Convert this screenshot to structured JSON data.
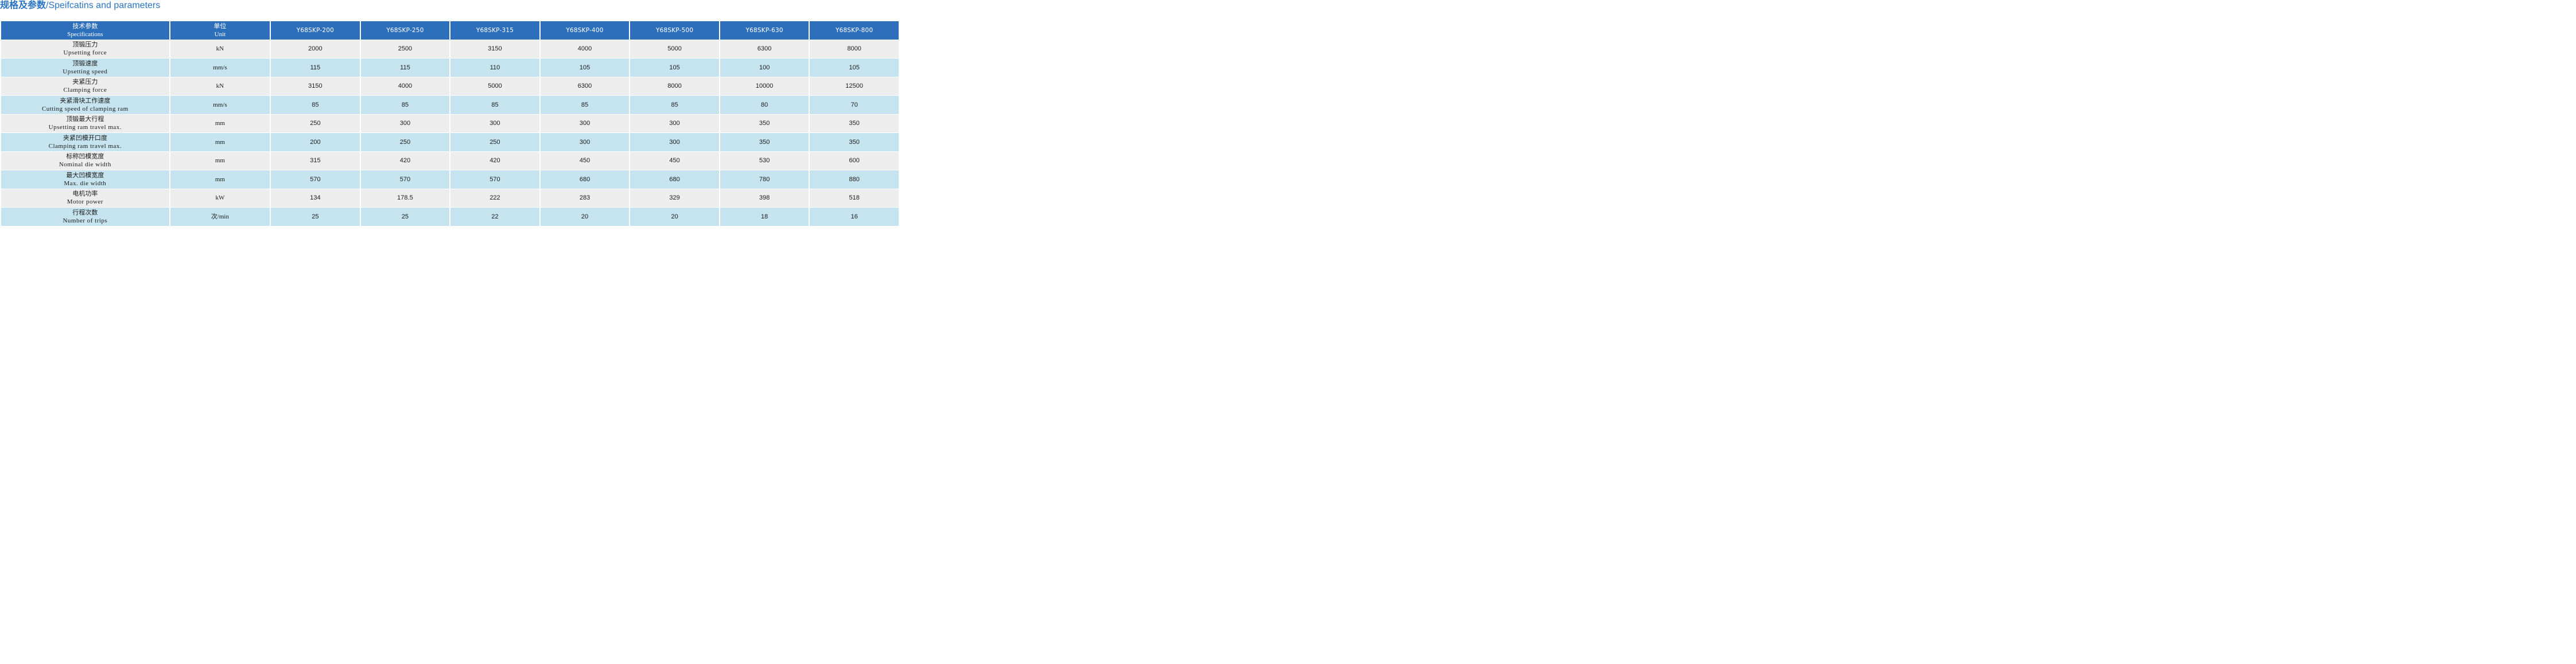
{
  "title": {
    "zh": "规格及参数",
    "en": "/Speifcatins and parameters"
  },
  "header": {
    "spec_zh": "技术参数",
    "spec_en": "Specifications",
    "unit_zh": "单位",
    "unit_en": "Unit",
    "models": [
      "Y68SKP-200",
      "Y68SKP-250",
      "Y68SKP-315",
      "Y68SKP-400",
      "Y68SKP-500",
      "Y68SKP-630",
      "Y68SKP-800"
    ]
  },
  "rows": [
    {
      "zh": "顶锻压力",
      "en": "Upsetting force",
      "unit": "kN",
      "values": [
        "2000",
        "2500",
        "3150",
        "4000",
        "5000",
        "6300",
        "8000"
      ]
    },
    {
      "zh": "顶锻速度",
      "en": "Upsetting speed",
      "unit": "mm/s",
      "values": [
        "115",
        "115",
        "110",
        "105",
        "105",
        "100",
        "105"
      ]
    },
    {
      "zh": "夹紧压力",
      "en": "Clamping force",
      "unit": "kN",
      "values": [
        "3150",
        "4000",
        "5000",
        "6300",
        "8000",
        "10000",
        "12500"
      ]
    },
    {
      "zh": "夹紧滑块工作速度",
      "en": "Cutting speed of clamping ram",
      "unit": "mm/s",
      "values": [
        "85",
        "85",
        "85",
        "85",
        "85",
        "80",
        "70"
      ]
    },
    {
      "zh": "顶锻最大行程",
      "en": "Upsetting ram travel max.",
      "unit": "mm",
      "values": [
        "250",
        "300",
        "300",
        "300",
        "300",
        "350",
        "350"
      ]
    },
    {
      "zh": "夹紧凹模开口度",
      "en": "Clamping ram travel max.",
      "unit": "mm",
      "values": [
        "200",
        "250",
        "250",
        "300",
        "300",
        "350",
        "350"
      ]
    },
    {
      "zh": "标称凹模宽度",
      "en": "Nominal die width",
      "unit": "mm",
      "values": [
        "315",
        "420",
        "420",
        "450",
        "450",
        "530",
        "600"
      ]
    },
    {
      "zh": "最大凹模宽度",
      "en": "Max. die width",
      "unit": "mm",
      "values": [
        "570",
        "570",
        "570",
        "680",
        "680",
        "780",
        "880"
      ]
    },
    {
      "zh": "电机功率",
      "en": "Motor power",
      "unit": "kW",
      "values": [
        "134",
        "178.5",
        "222",
        "283",
        "329",
        "398",
        "518"
      ]
    },
    {
      "zh": "行程次数",
      "en": "Number of trips",
      "unit": "次/min",
      "values": [
        "25",
        "25",
        "22",
        "20",
        "20",
        "18",
        "16"
      ]
    }
  ]
}
